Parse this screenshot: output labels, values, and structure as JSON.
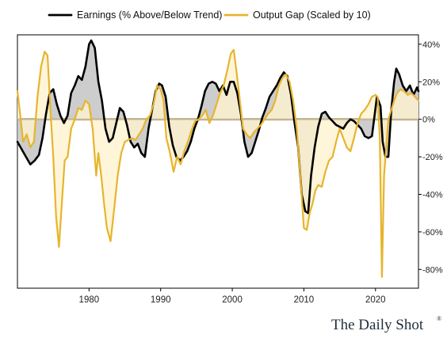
{
  "chart_data": {
    "type": "line",
    "title": "",
    "xlabel": "",
    "ylabel": "",
    "xlim": [
      1970,
      2026
    ],
    "ylim": [
      -90,
      45
    ],
    "x_ticks": [
      1980,
      1990,
      2000,
      2010,
      2020
    ],
    "y_ticks": [
      40,
      20,
      0,
      -20,
      -40,
      -60,
      -80
    ],
    "y_tick_labels": [
      "40%",
      "20%",
      "0%",
      "-20%",
      "-40%",
      "-60%",
      "-80%"
    ],
    "grid": false,
    "legend_position": "top",
    "zero_band": true,
    "series": [
      {
        "name": "Earnings (% Above/Below Trend)",
        "color": "#000000",
        "fill": "#c4c4c4",
        "points": [
          [
            1970.0,
            -12
          ],
          [
            1970.6,
            -16
          ],
          [
            1971.2,
            -20
          ],
          [
            1971.8,
            -24
          ],
          [
            1972.4,
            -22
          ],
          [
            1973.0,
            -19
          ],
          [
            1973.5,
            -10
          ],
          [
            1974.0,
            3
          ],
          [
            1974.5,
            14
          ],
          [
            1975.0,
            16
          ],
          [
            1975.5,
            8
          ],
          [
            1976.0,
            2
          ],
          [
            1976.5,
            -2
          ],
          [
            1977.0,
            2
          ],
          [
            1977.5,
            14
          ],
          [
            1978.0,
            18
          ],
          [
            1978.5,
            23
          ],
          [
            1979.0,
            21
          ],
          [
            1979.5,
            28
          ],
          [
            1980.0,
            40
          ],
          [
            1980.3,
            42
          ],
          [
            1980.8,
            38
          ],
          [
            1981.3,
            20
          ],
          [
            1981.8,
            10
          ],
          [
            1982.3,
            -5
          ],
          [
            1982.8,
            -12
          ],
          [
            1983.3,
            -10
          ],
          [
            1983.8,
            -2
          ],
          [
            1984.3,
            6
          ],
          [
            1984.8,
            4
          ],
          [
            1985.3,
            -3
          ],
          [
            1985.8,
            -12
          ],
          [
            1986.3,
            -15
          ],
          [
            1986.8,
            -13
          ],
          [
            1987.3,
            -18
          ],
          [
            1987.8,
            -20
          ],
          [
            1988.3,
            -5
          ],
          [
            1988.8,
            5
          ],
          [
            1989.3,
            15
          ],
          [
            1989.8,
            19
          ],
          [
            1990.2,
            18
          ],
          [
            1990.7,
            12
          ],
          [
            1991.2,
            -4
          ],
          [
            1991.7,
            -14
          ],
          [
            1992.2,
            -20
          ],
          [
            1992.7,
            -22
          ],
          [
            1993.2,
            -20
          ],
          [
            1993.7,
            -17
          ],
          [
            1994.2,
            -12
          ],
          [
            1994.7,
            -5
          ],
          [
            1995.2,
            0
          ],
          [
            1995.7,
            7
          ],
          [
            1996.2,
            15
          ],
          [
            1996.7,
            19
          ],
          [
            1997.2,
            20
          ],
          [
            1997.7,
            19
          ],
          [
            1998.2,
            15
          ],
          [
            1998.7,
            18
          ],
          [
            1999.2,
            13
          ],
          [
            1999.7,
            20
          ],
          [
            2000.2,
            20
          ],
          [
            2000.7,
            14
          ],
          [
            2001.2,
            3
          ],
          [
            2001.7,
            -12
          ],
          [
            2002.2,
            -20
          ],
          [
            2002.7,
            -18
          ],
          [
            2003.2,
            -12
          ],
          [
            2003.7,
            -6
          ],
          [
            2004.2,
            1
          ],
          [
            2004.7,
            6
          ],
          [
            2005.2,
            12
          ],
          [
            2005.7,
            15
          ],
          [
            2006.2,
            18
          ],
          [
            2006.7,
            22
          ],
          [
            2007.2,
            25
          ],
          [
            2007.7,
            23
          ],
          [
            2008.2,
            13
          ],
          [
            2008.7,
            -2
          ],
          [
            2009.2,
            -15
          ],
          [
            2009.7,
            -40
          ],
          [
            2010.2,
            -49
          ],
          [
            2010.6,
            -50
          ],
          [
            2011.0,
            -30
          ],
          [
            2011.5,
            -15
          ],
          [
            2012.0,
            -4
          ],
          [
            2012.5,
            3
          ],
          [
            2013.0,
            4
          ],
          [
            2013.5,
            1
          ],
          [
            2014.0,
            -1
          ],
          [
            2014.5,
            -3
          ],
          [
            2015.0,
            -4
          ],
          [
            2015.5,
            -5
          ],
          [
            2016.0,
            -2
          ],
          [
            2016.5,
            0
          ],
          [
            2017.0,
            -1
          ],
          [
            2017.5,
            -3
          ],
          [
            2018.0,
            -5
          ],
          [
            2018.5,
            -9
          ],
          [
            2019.0,
            -10
          ],
          [
            2019.5,
            -9
          ],
          [
            2019.8,
            0
          ],
          [
            2020.2,
            12
          ],
          [
            2020.7,
            7
          ],
          [
            2021.0,
            -12
          ],
          [
            2021.4,
            -20
          ],
          [
            2021.8,
            -20
          ],
          [
            2022.2,
            5
          ],
          [
            2022.6,
            20
          ],
          [
            2022.9,
            27
          ],
          [
            2023.3,
            24
          ],
          [
            2023.8,
            18
          ],
          [
            2024.3,
            15
          ],
          [
            2024.8,
            18
          ],
          [
            2025.3,
            13
          ],
          [
            2025.8,
            17
          ],
          [
            2026.0,
            15
          ]
        ]
      },
      {
        "name": "Output Gap (Scaled by 10)",
        "color": "#e6b52e",
        "fill": "#fff3cf",
        "points": [
          [
            1970.0,
            15
          ],
          [
            1970.4,
            2
          ],
          [
            1970.8,
            -12
          ],
          [
            1971.3,
            -8
          ],
          [
            1971.8,
            -15
          ],
          [
            1972.3,
            -12
          ],
          [
            1972.8,
            12
          ],
          [
            1973.3,
            28
          ],
          [
            1973.8,
            36
          ],
          [
            1974.2,
            34
          ],
          [
            1974.6,
            5
          ],
          [
            1975.0,
            -20
          ],
          [
            1975.4,
            -52
          ],
          [
            1975.8,
            -68
          ],
          [
            1976.2,
            -45
          ],
          [
            1976.6,
            -22
          ],
          [
            1977.0,
            -20
          ],
          [
            1977.5,
            -5
          ],
          [
            1978.0,
            0
          ],
          [
            1978.5,
            6
          ],
          [
            1979.0,
            5
          ],
          [
            1979.5,
            10
          ],
          [
            1980.0,
            8
          ],
          [
            1980.5,
            -5
          ],
          [
            1981.0,
            -30
          ],
          [
            1981.3,
            -18
          ],
          [
            1981.7,
            -30
          ],
          [
            1982.1,
            -45
          ],
          [
            1982.5,
            -58
          ],
          [
            1983.0,
            -65
          ],
          [
            1983.5,
            -48
          ],
          [
            1984.0,
            -30
          ],
          [
            1984.5,
            -18
          ],
          [
            1985.0,
            -12
          ],
          [
            1985.5,
            -11
          ],
          [
            1986.0,
            -10
          ],
          [
            1986.5,
            -11
          ],
          [
            1987.0,
            -8
          ],
          [
            1987.5,
            -5
          ],
          [
            1988.0,
            0
          ],
          [
            1988.5,
            2
          ],
          [
            1989.0,
            8
          ],
          [
            1989.5,
            18
          ],
          [
            1990.0,
            16
          ],
          [
            1990.4,
            10
          ],
          [
            1990.8,
            -10
          ],
          [
            1991.3,
            -18
          ],
          [
            1991.8,
            -28
          ],
          [
            1992.3,
            -20
          ],
          [
            1992.8,
            -24
          ],
          [
            1993.3,
            -17
          ],
          [
            1993.8,
            -12
          ],
          [
            1994.3,
            -6
          ],
          [
            1994.8,
            -1
          ],
          [
            1995.3,
            0
          ],
          [
            1995.8,
            2
          ],
          [
            1996.3,
            5
          ],
          [
            1996.8,
            -2
          ],
          [
            1997.3,
            2
          ],
          [
            1997.8,
            8
          ],
          [
            1998.3,
            14
          ],
          [
            1998.8,
            18
          ],
          [
            1999.3,
            26
          ],
          [
            1999.8,
            35
          ],
          [
            2000.2,
            37
          ],
          [
            2000.6,
            25
          ],
          [
            2001.0,
            12
          ],
          [
            2001.5,
            -5
          ],
          [
            2002.0,
            -8
          ],
          [
            2002.5,
            -10
          ],
          [
            2003.0,
            -7
          ],
          [
            2003.5,
            -5
          ],
          [
            2004.0,
            -3
          ],
          [
            2004.5,
            0
          ],
          [
            2005.0,
            3
          ],
          [
            2005.5,
            5
          ],
          [
            2006.0,
            10
          ],
          [
            2006.5,
            18
          ],
          [
            2007.0,
            22
          ],
          [
            2007.5,
            24
          ],
          [
            2008.0,
            20
          ],
          [
            2008.5,
            10
          ],
          [
            2009.0,
            -5
          ],
          [
            2009.5,
            -30
          ],
          [
            2010.0,
            -58
          ],
          [
            2010.4,
            -59
          ],
          [
            2010.8,
            -50
          ],
          [
            2011.2,
            -45
          ],
          [
            2011.6,
            -38
          ],
          [
            2012.0,
            -35
          ],
          [
            2012.5,
            -36
          ],
          [
            2013.0,
            -28
          ],
          [
            2013.5,
            -22
          ],
          [
            2014.0,
            -20
          ],
          [
            2014.5,
            -12
          ],
          [
            2015.0,
            -5
          ],
          [
            2015.5,
            -10
          ],
          [
            2016.0,
            -15
          ],
          [
            2016.5,
            -17
          ],
          [
            2017.0,
            -10
          ],
          [
            2017.5,
            -2
          ],
          [
            2018.0,
            3
          ],
          [
            2018.5,
            5
          ],
          [
            2019.0,
            8
          ],
          [
            2019.5,
            12
          ],
          [
            2020.0,
            13
          ],
          [
            2020.3,
            12
          ],
          [
            2020.6,
            -10
          ],
          [
            2020.9,
            -84
          ],
          [
            2021.2,
            -30
          ],
          [
            2021.5,
            -15
          ],
          [
            2021.8,
            0
          ],
          [
            2022.2,
            5
          ],
          [
            2022.6,
            10
          ],
          [
            2023.0,
            14
          ],
          [
            2023.5,
            16
          ],
          [
            2024.0,
            15
          ],
          [
            2024.5,
            13
          ],
          [
            2025.0,
            14
          ],
          [
            2025.5,
            12
          ],
          [
            2026.0,
            10
          ]
        ]
      }
    ]
  },
  "watermark": "The Daily Shot",
  "watermark_mark": "®"
}
